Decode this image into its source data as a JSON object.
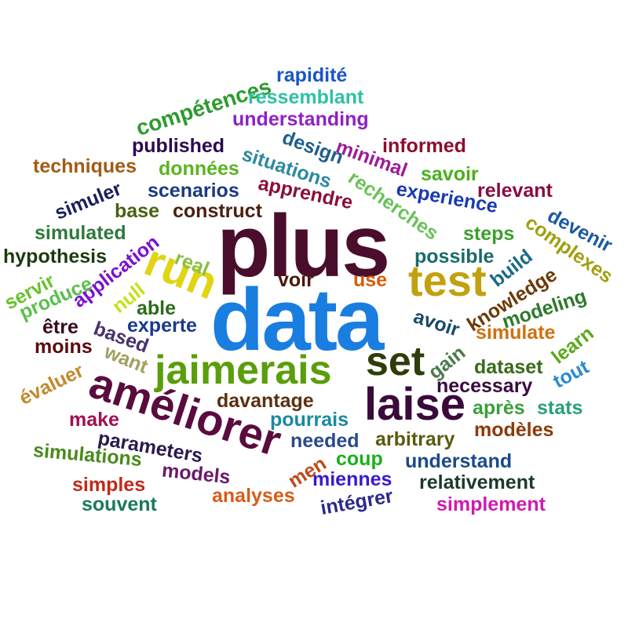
{
  "words": [
    {
      "text": "plus",
      "color": "#4a0d2c"
    },
    {
      "text": "data",
      "color": "#1a7de0"
    },
    {
      "text": "améliorer",
      "color": "#5a0c3e"
    },
    {
      "text": "jaimerais",
      "color": "#5a9e0c"
    },
    {
      "text": "laise",
      "color": "#3a0a3a"
    },
    {
      "text": "set",
      "color": "#2e3d0a"
    },
    {
      "text": "test",
      "color": "#c2a10f"
    },
    {
      "text": "run",
      "color": "#e1d411"
    },
    {
      "text": "compétences",
      "color": "#2e9a2e"
    },
    {
      "text": "rapidité",
      "color": "#1a55c8"
    },
    {
      "text": "ressemblant",
      "color": "#2fc0a4"
    },
    {
      "text": "understanding",
      "color": "#8f22c4"
    },
    {
      "text": "published",
      "color": "#2a0a50"
    },
    {
      "text": "situations",
      "color": "#2c8aa0"
    },
    {
      "text": "design",
      "color": "#1c5e90"
    },
    {
      "text": "minimal",
      "color": "#9c1c9a"
    },
    {
      "text": "informed",
      "color": "#8e0c30"
    },
    {
      "text": "techniques",
      "color": "#a05c14"
    },
    {
      "text": "données",
      "color": "#5ab41e"
    },
    {
      "text": "recherches",
      "color": "#6ac25a"
    },
    {
      "text": "savoir",
      "color": "#4cb01c"
    },
    {
      "text": "simuler",
      "color": "#1a1e5a"
    },
    {
      "text": "scenarios",
      "color": "#1c3a80"
    },
    {
      "text": "apprendre",
      "color": "#8a1038"
    },
    {
      "text": "experience",
      "color": "#1a3ab0"
    },
    {
      "text": "relevant",
      "color": "#8a0c40"
    },
    {
      "text": "base",
      "color": "#4a6010"
    },
    {
      "text": "construct",
      "color": "#4a2010"
    },
    {
      "text": "devenir",
      "color": "#1c5aa0"
    },
    {
      "text": "simulated",
      "color": "#2f7a3c"
    },
    {
      "text": "application",
      "color": "#7a10d0"
    },
    {
      "text": "complexes",
      "color": "#a0a010"
    },
    {
      "text": "steps",
      "color": "#3ca02c"
    },
    {
      "text": "hypothesis",
      "color": "#1a3a10"
    },
    {
      "text": "real",
      "color": "#8ac040"
    },
    {
      "text": "possible",
      "color": "#1a6a6a"
    },
    {
      "text": "build",
      "color": "#1a6a8a"
    },
    {
      "text": "servir",
      "color": "#6ac02c"
    },
    {
      "text": "produce",
      "color": "#5ac04c"
    },
    {
      "text": "null",
      "color": "#c8e01c"
    },
    {
      "text": "voir",
      "color": "#4a1a0a"
    },
    {
      "text": "use",
      "color": "#d85c0c"
    },
    {
      "text": "knowledge",
      "color": "#6a3a0a"
    },
    {
      "text": "modeling",
      "color": "#2c7a2c"
    },
    {
      "text": "able",
      "color": "#2c6a1c"
    },
    {
      "text": "être",
      "color": "#3a0a20"
    },
    {
      "text": "based",
      "color": "#4a3070"
    },
    {
      "text": "experte",
      "color": "#1a3a8a"
    },
    {
      "text": "avoir",
      "color": "#1a4a6a"
    },
    {
      "text": "simulate",
      "color": "#d07010"
    },
    {
      "text": "learn",
      "color": "#5aaa1c"
    },
    {
      "text": "moins",
      "color": "#5a0c10"
    },
    {
      "text": "want",
      "color": "#a0a060"
    },
    {
      "text": "gain",
      "color": "#4a7a4a"
    },
    {
      "text": "dataset",
      "color": "#3a6a1a"
    },
    {
      "text": "tout",
      "color": "#2a8ad0"
    },
    {
      "text": "évaluer",
      "color": "#c08a2c"
    },
    {
      "text": "necessary",
      "color": "#3a0a40"
    },
    {
      "text": "make",
      "color": "#a01050"
    },
    {
      "text": "davantage",
      "color": "#5a3010"
    },
    {
      "text": "pourrais",
      "color": "#1a8aa0"
    },
    {
      "text": "après",
      "color": "#3aa03a"
    },
    {
      "text": "stats",
      "color": "#2aa07a"
    },
    {
      "text": "parameters",
      "color": "#2a1a50"
    },
    {
      "text": "needed",
      "color": "#2a4a8a"
    },
    {
      "text": "arbitrary",
      "color": "#5a5a10"
    },
    {
      "text": "modèles",
      "color": "#8a3a0a"
    },
    {
      "text": "simulations",
      "color": "#4a8a1a"
    },
    {
      "text": "models",
      "color": "#6a1a6a"
    },
    {
      "text": "men",
      "color": "#c04a1a"
    },
    {
      "text": "coup",
      "color": "#1ab01a"
    },
    {
      "text": "understand",
      "color": "#1a4a8a"
    },
    {
      "text": "simples",
      "color": "#c02a1a"
    },
    {
      "text": "analyses",
      "color": "#d85c1a"
    },
    {
      "text": "miennes",
      "color": "#3a1ad0"
    },
    {
      "text": "relativement",
      "color": "#1a3a2a"
    },
    {
      "text": "souvent",
      "color": "#1a7a5a"
    },
    {
      "text": "intégrer",
      "color": "#2a2a8a"
    },
    {
      "text": "simplement",
      "color": "#d01ab0"
    }
  ]
}
